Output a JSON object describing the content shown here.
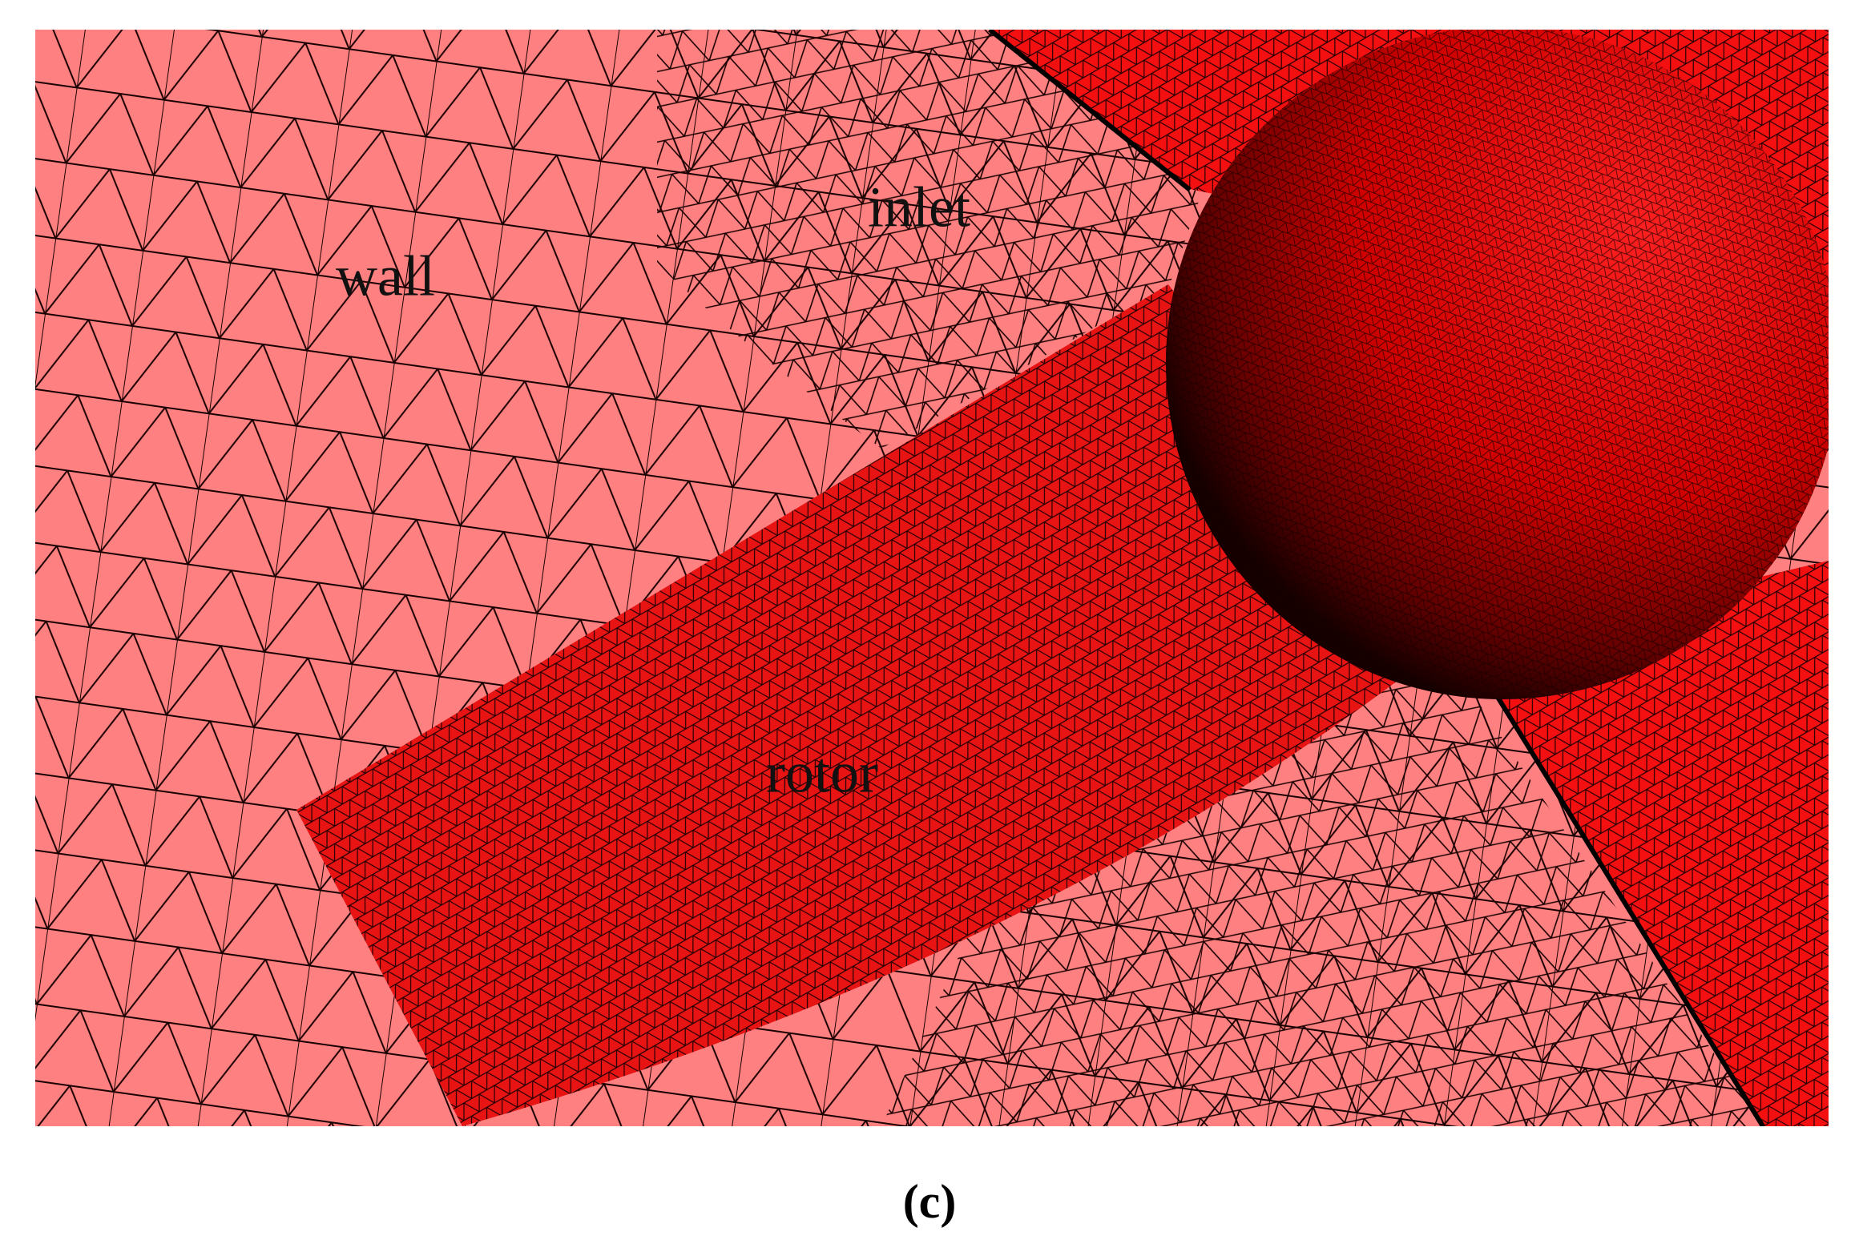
{
  "figure": {
    "labels": {
      "wall": "wall",
      "inlet": "inlet",
      "rotor": "rotor"
    },
    "caption": "(c)"
  }
}
